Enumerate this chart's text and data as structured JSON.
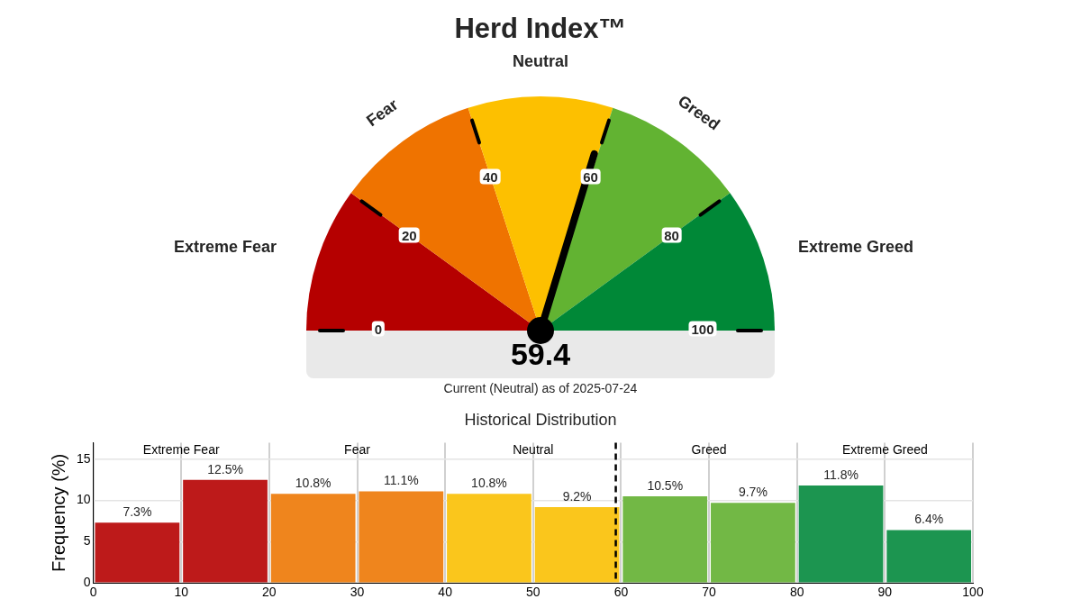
{
  "chart_data": [
    {
      "type": "pie",
      "title": "Herd Index™",
      "categories": [
        "Extreme Fear",
        "Fear",
        "Neutral",
        "Greed",
        "Extreme Greed"
      ],
      "values": [
        20,
        20,
        20,
        20,
        20
      ],
      "colors": [
        "#b50000",
        "#ef7300",
        "#fdc000",
        "#62b332",
        "#008837"
      ],
      "needle": "Neutral",
      "annotations": [
        "0",
        "20",
        "40",
        "60",
        "80",
        "100",
        "59.4",
        "Current (Neutral) as of 2025-07-24"
      ]
    },
    {
      "type": "histogram",
      "title": "Historical Distribution",
      "ylabel": "Frequency (%)",
      "bins": [
        0,
        10,
        20,
        30,
        40,
        50,
        60,
        70,
        80,
        90,
        100
      ],
      "values": [
        7.3,
        12.5,
        10.8,
        11.1,
        10.8,
        9.2,
        10.5,
        9.7,
        11.8,
        6.4
      ],
      "value_labels": [
        "7.3%",
        "12.5%",
        "10.8%",
        "11.1%",
        "10.8%",
        "9.2%",
        "10.5%",
        "9.7%",
        "11.8%",
        "6.4%"
      ],
      "colors": [
        "#bd1a1a",
        "#bd1a1a",
        "#ef851d",
        "#ef851d",
        "#fac61c",
        "#fac61c",
        "#72b845",
        "#72b845",
        "#1c9550",
        "#1c9550"
      ],
      "xlim": [
        0,
        100
      ],
      "xticks": [
        0,
        10,
        20,
        30,
        40,
        50,
        60,
        70,
        80,
        90,
        100
      ],
      "ylim": [
        0,
        17
      ],
      "yticks": [
        0,
        5,
        10,
        15
      ],
      "grid": true,
      "ref_lines": [
        {
          "axis": "x",
          "value": 59.4,
          "line_style": "dashed",
          "color": "#000000"
        }
      ],
      "annotations": [
        "Extreme Fear",
        "Fear",
        "Neutral",
        "Greed",
        "Extreme Greed"
      ]
    }
  ]
}
